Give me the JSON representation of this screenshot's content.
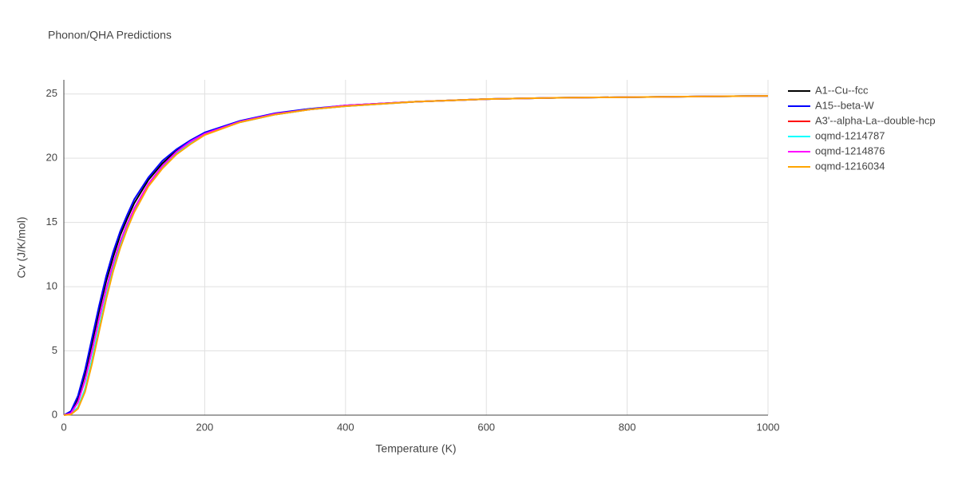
{
  "chart_data": {
    "type": "line",
    "title": "Phonon/QHA Predictions",
    "x_label": "Temperature (K)",
    "y_label": "Cv (J/K/mol)",
    "x": [
      0,
      10,
      20,
      30,
      40,
      50,
      60,
      70,
      80,
      90,
      100,
      120,
      140,
      160,
      180,
      200,
      250,
      300,
      350,
      400,
      500,
      600,
      700,
      800,
      900,
      1000
    ],
    "series": [
      {
        "name": "A1--Cu--fcc",
        "color": "#000000",
        "values": [
          0,
          0.25,
          1.3,
          3.2,
          5.6,
          8.1,
          10.4,
          12.3,
          14,
          15.3,
          16.5,
          18.3,
          19.6,
          20.6,
          21.3,
          21.9,
          22.85,
          23.45,
          23.8,
          24.1,
          24.4,
          24.6,
          24.7,
          24.75,
          24.8,
          24.85
        ]
      },
      {
        "name": "A15--beta-W",
        "color": "#0000ff",
        "values": [
          0,
          0.3,
          1.5,
          3.5,
          6,
          8.5,
          10.8,
          12.7,
          14.3,
          15.6,
          16.8,
          18.5,
          19.8,
          20.7,
          21.4,
          22,
          22.9,
          23.5,
          23.85,
          24.1,
          24.4,
          24.6,
          24.7,
          24.75,
          24.8,
          24.85
        ]
      },
      {
        "name": "A3'--alpha-La--double-hcp",
        "color": "#ff0000",
        "values": [
          0,
          0.1,
          0.6,
          2,
          4.3,
          6.8,
          9.2,
          11.4,
          13.2,
          14.7,
          15.9,
          17.9,
          19.3,
          20.4,
          21.2,
          21.85,
          22.8,
          23.4,
          23.8,
          24.05,
          24.4,
          24.6,
          24.7,
          24.75,
          24.8,
          24.85
        ]
      },
      {
        "name": "oqmd-1214787",
        "color": "#00ffff",
        "values": [
          0,
          0.1,
          0.6,
          2,
          4.3,
          6.8,
          9.2,
          11.4,
          13.2,
          14.7,
          15.9,
          17.9,
          19.3,
          20.4,
          21.2,
          21.85,
          22.8,
          23.4,
          23.8,
          24.05,
          24.4,
          24.6,
          24.7,
          24.75,
          24.8,
          24.85
        ]
      },
      {
        "name": "oqmd-1214876",
        "color": "#ff00ff",
        "values": [
          0,
          0.15,
          1,
          2.7,
          5,
          7.5,
          9.8,
          11.8,
          13.5,
          14.9,
          16.1,
          18,
          19.4,
          20.5,
          21.3,
          21.9,
          22.85,
          23.45,
          23.8,
          24.1,
          24.4,
          24.6,
          24.7,
          24.75,
          24.8,
          24.85
        ]
      },
      {
        "name": "oqmd-1216034",
        "color": "#ffa500",
        "values": [
          0,
          0.05,
          0.5,
          1.8,
          4,
          6.5,
          9,
          11.2,
          13,
          14.5,
          15.8,
          17.8,
          19.2,
          20.3,
          21.1,
          21.8,
          22.8,
          23.4,
          23.8,
          24.05,
          24.4,
          24.6,
          24.7,
          24.75,
          24.8,
          24.85
        ]
      }
    ],
    "xlim": [
      0,
      1000
    ],
    "xticks": [
      0,
      200,
      400,
      600,
      800,
      1000
    ],
    "ylim": [
      0,
      26.1
    ],
    "yticks": [
      0,
      5,
      10,
      15,
      20,
      25
    ],
    "grid": true
  }
}
